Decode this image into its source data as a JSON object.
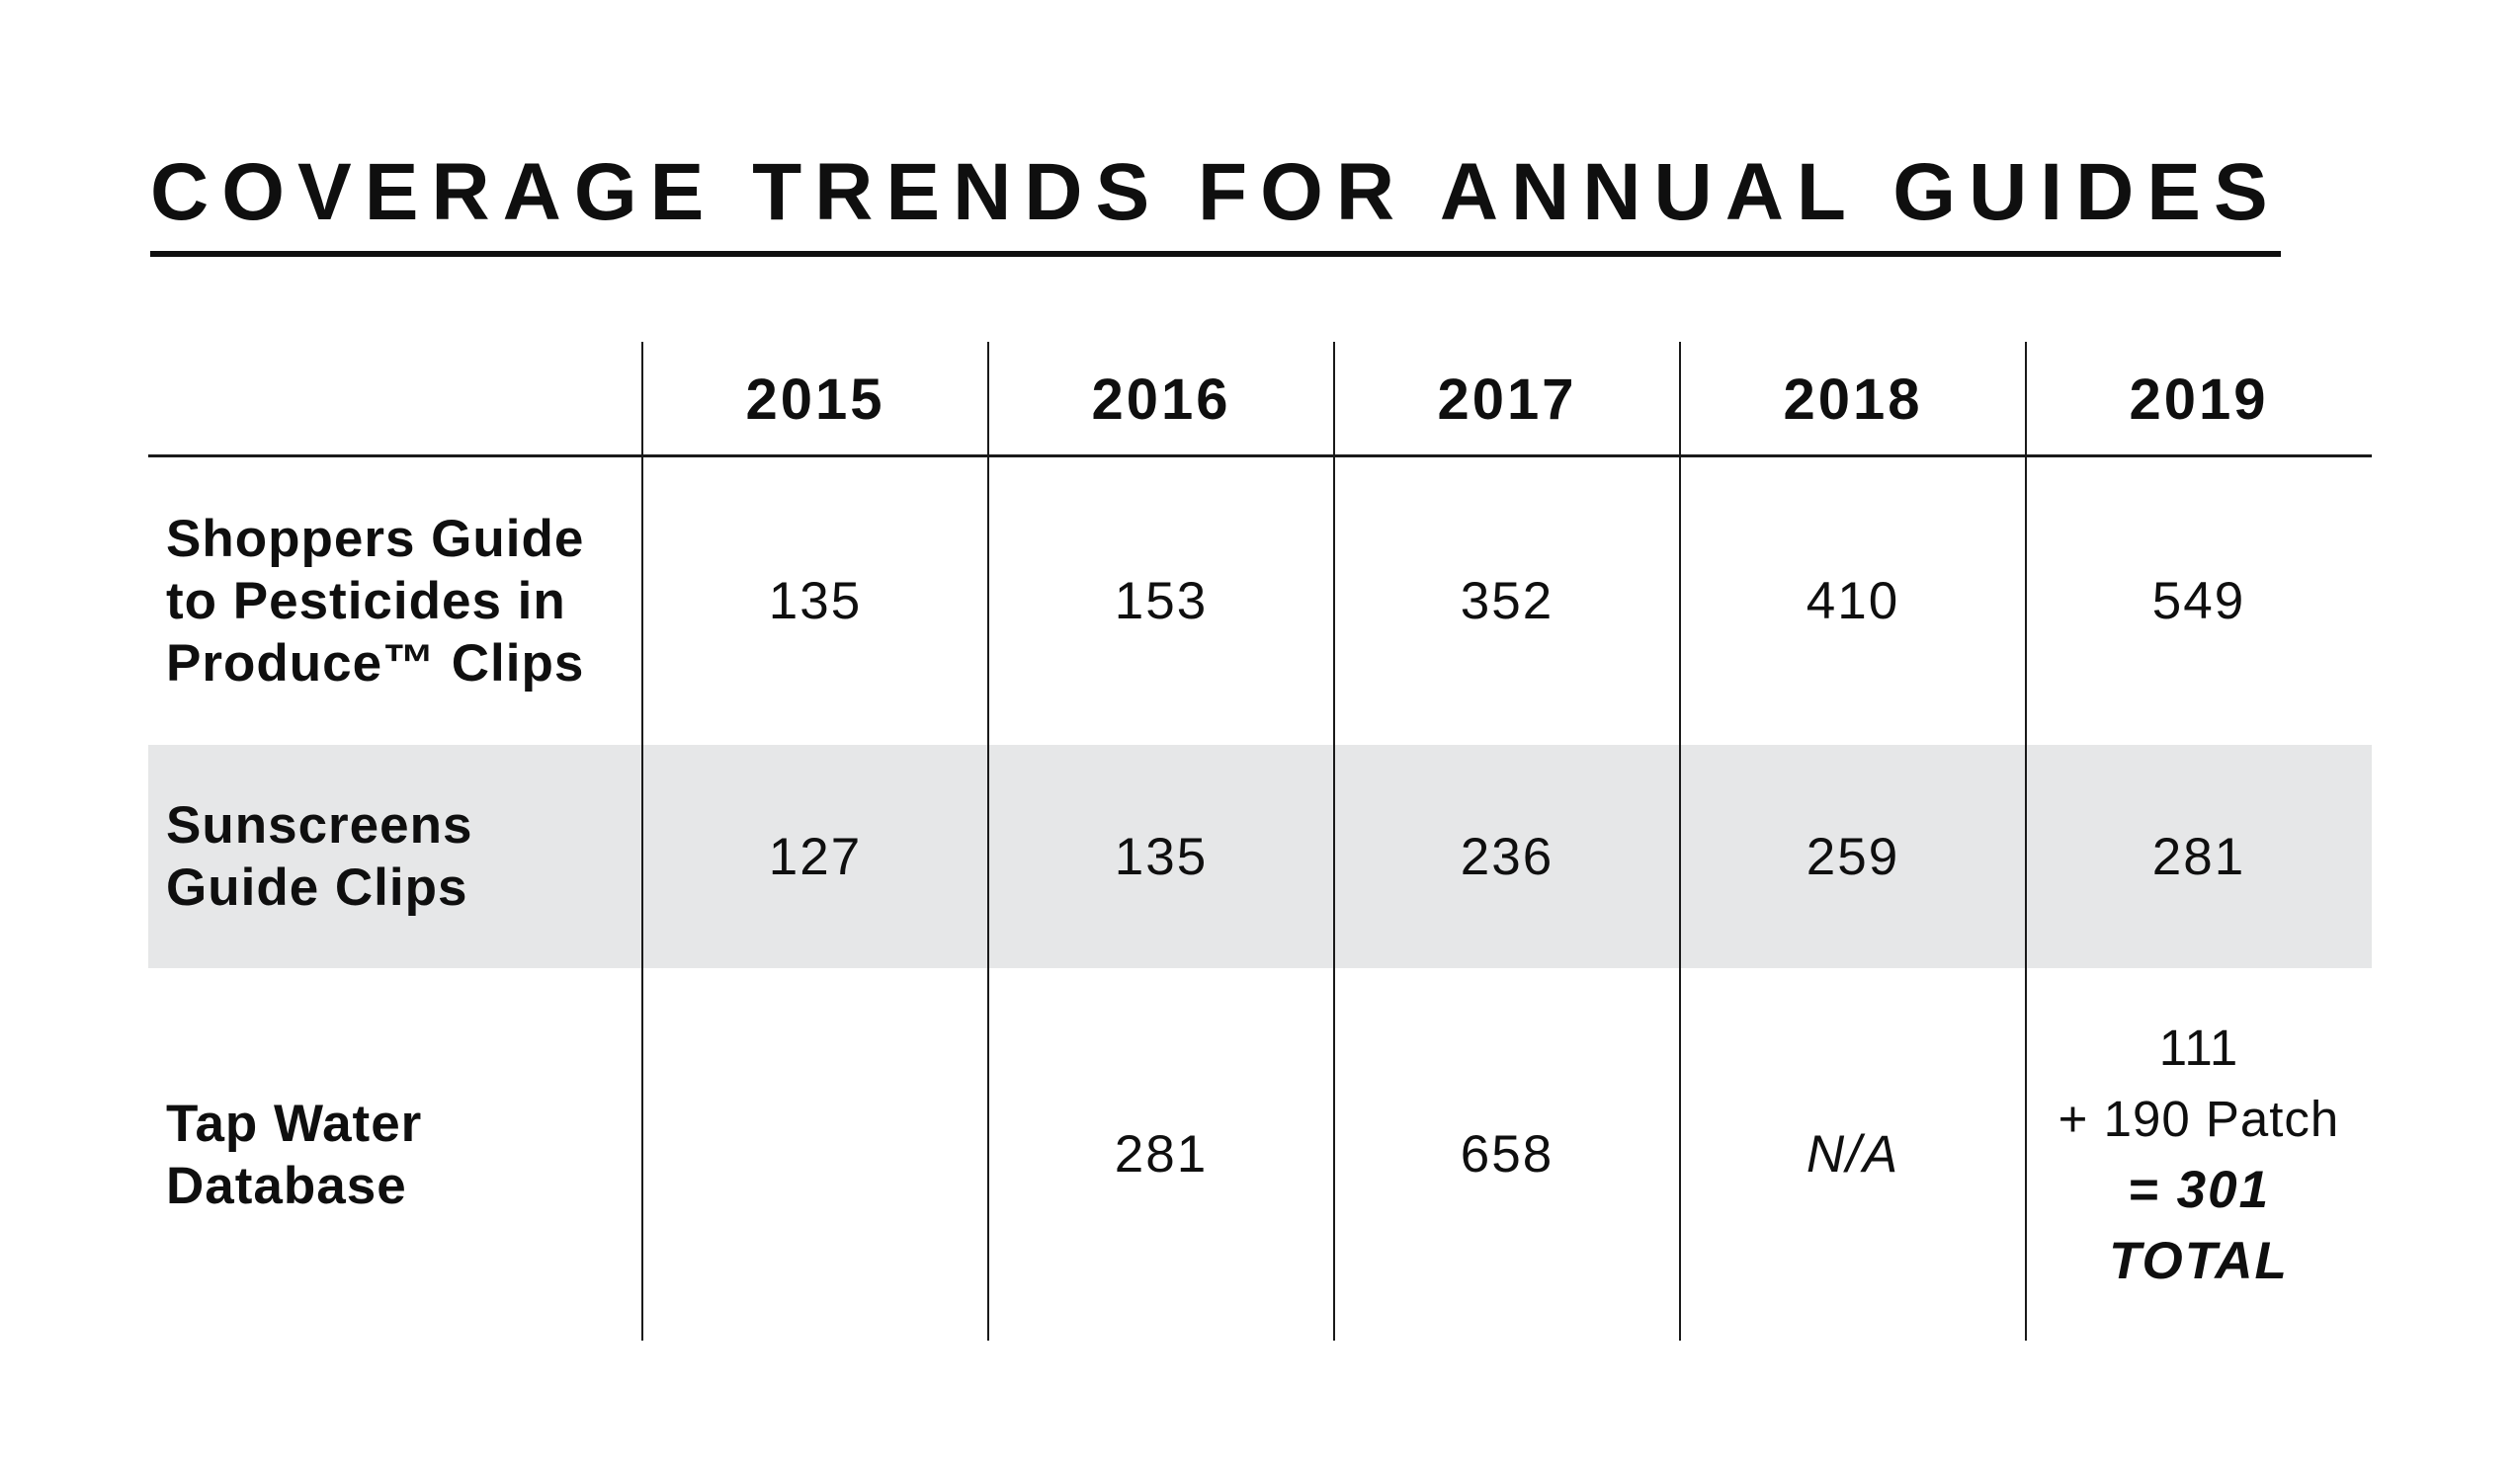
{
  "title": "COVERAGE TRENDS FOR ANNUAL GUIDES",
  "table": {
    "column_headers": [
      "2015",
      "2016",
      "2017",
      "2018",
      "2019"
    ],
    "rows": [
      {
        "label": "Shoppers Guide\nto Pesticides in\nProduce™ Clips",
        "values": [
          "135",
          "153",
          "352",
          "410",
          "549"
        ]
      },
      {
        "label": "Sunscreens\nGuide Clips",
        "values": [
          "127",
          "135",
          "236",
          "259",
          "281"
        ]
      },
      {
        "label": "Tap Water\nDatabase",
        "values": [
          "",
          "281",
          "658",
          "N/A"
        ],
        "y2019": {
          "count": "111",
          "patch": "+ 190 Patch",
          "total": "= 301",
          "total_label": "TOTAL"
        }
      }
    ]
  },
  "colors": {
    "text": "#0f0f0f",
    "highlight_row": "#e6e7e8",
    "rule": "#1a1a1a",
    "background": "#ffffff"
  }
}
